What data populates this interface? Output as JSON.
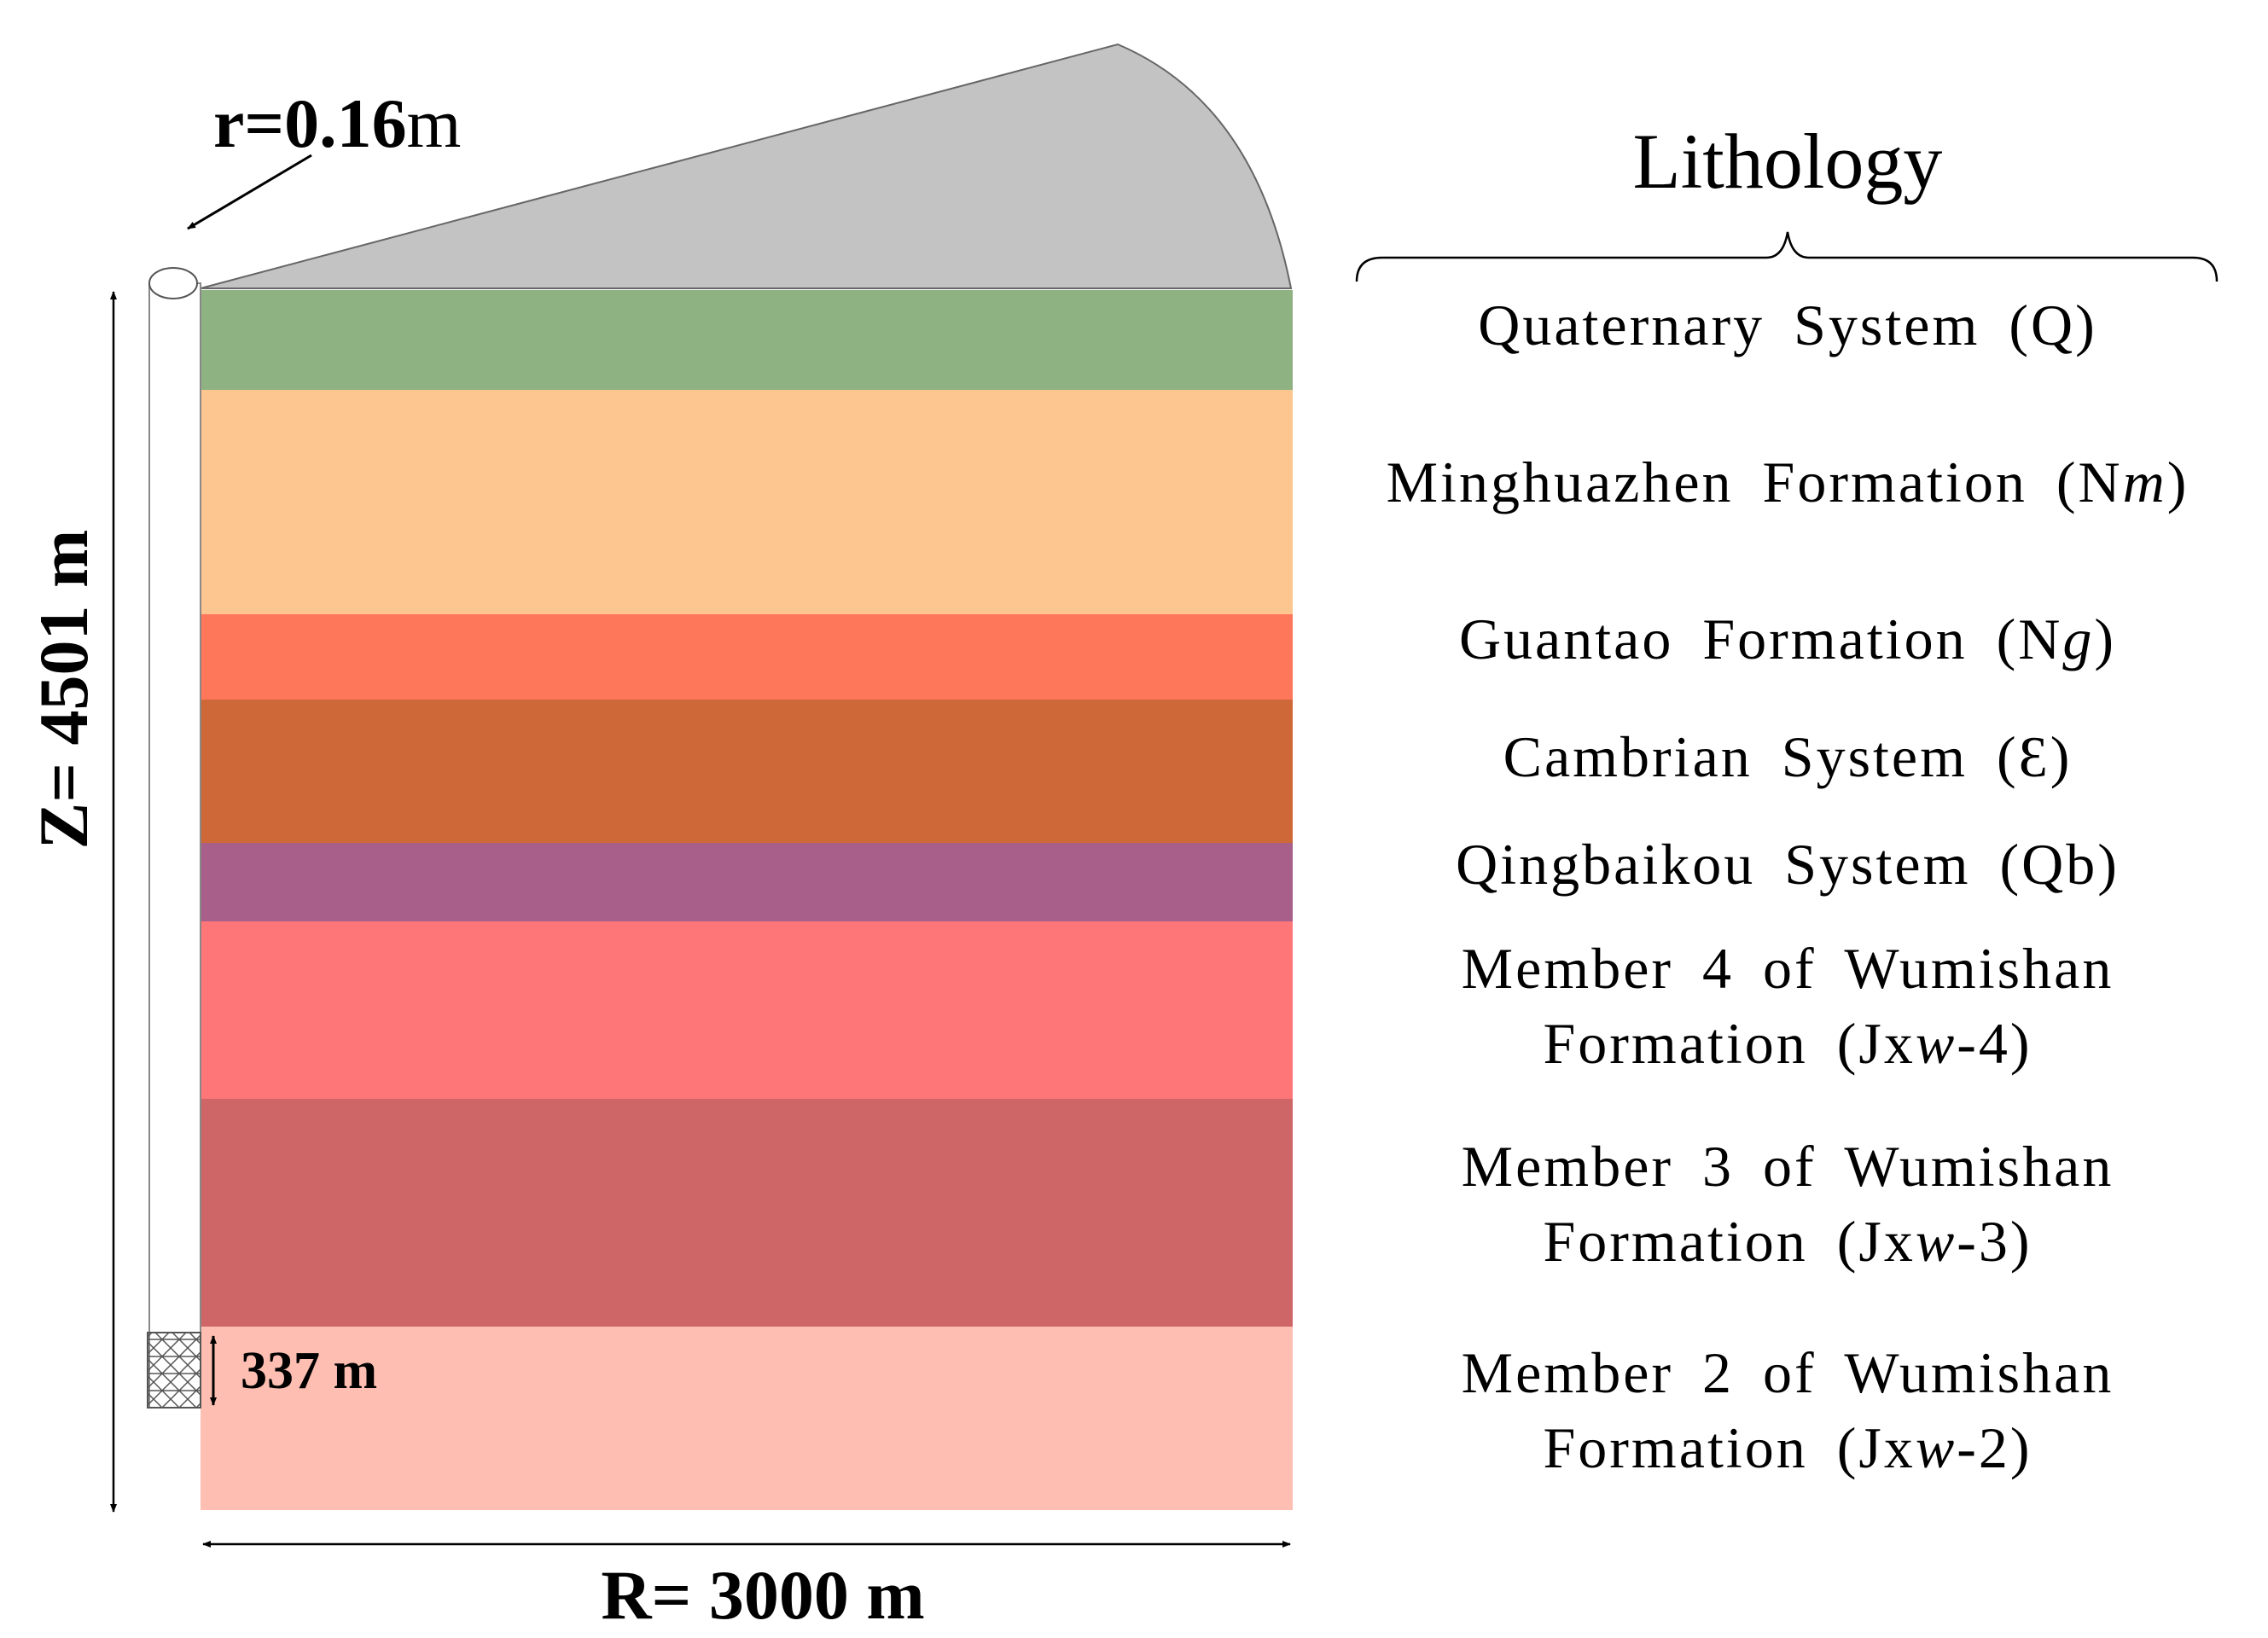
{
  "radius_label": {
    "prefix": "r=",
    "value": "0.16",
    "unit": "m"
  },
  "depth_label": "Z= 4501 m",
  "width_label": "R= 3000 m",
  "reservoir_label": "337 m",
  "lithology_heading": "Lithology",
  "colors": {
    "wedge": "#c3c3c3",
    "Q": "#8fb283",
    "Nm": "#fdc590",
    "Ng": "#ff775a",
    "cambrian": "#ce6838",
    "Qb": "#a8608b",
    "Jxw4": "#ff7678",
    "Jxw3": "#ce6668",
    "Jxw2": "#febfb2"
  },
  "layers": [
    {
      "key": "Q",
      "parts": [
        {
          "t": "Quaternary System (Q)"
        }
      ]
    },
    {
      "key": "Nm",
      "parts": [
        {
          "t": "Minghuazhen Formation (N"
        },
        {
          "t": "m",
          "i": true
        },
        {
          "t": ")"
        }
      ]
    },
    {
      "key": "Ng",
      "parts": [
        {
          "t": "Guantao Formation (N"
        },
        {
          "t": "g",
          "i": true
        },
        {
          "t": ")"
        }
      ]
    },
    {
      "key": "cambrian",
      "parts": [
        {
          "t": "Cambrian System (Ɛ)"
        }
      ]
    },
    {
      "key": "Qb",
      "parts": [
        {
          "t": "Qingbaikou System (Qb)"
        }
      ]
    },
    {
      "key": "Jxw4",
      "line1": "Member 4 of Wumishan",
      "parts": [
        {
          "t": "Formation (Jx"
        },
        {
          "t": "w",
          "i": true
        },
        {
          "t": "-4)"
        }
      ]
    },
    {
      "key": "Jxw3",
      "line1": "Member 3 of Wumishan",
      "parts": [
        {
          "t": "Formation (Jx"
        },
        {
          "t": "w",
          "i": true
        },
        {
          "t": "-3)"
        }
      ]
    },
    {
      "key": "Jxw2",
      "line1": "Member 2 of Wumishan",
      "parts": [
        {
          "t": "Formation (Jx"
        },
        {
          "t": "w",
          "i": true
        },
        {
          "t": "-2)"
        }
      ]
    }
  ]
}
